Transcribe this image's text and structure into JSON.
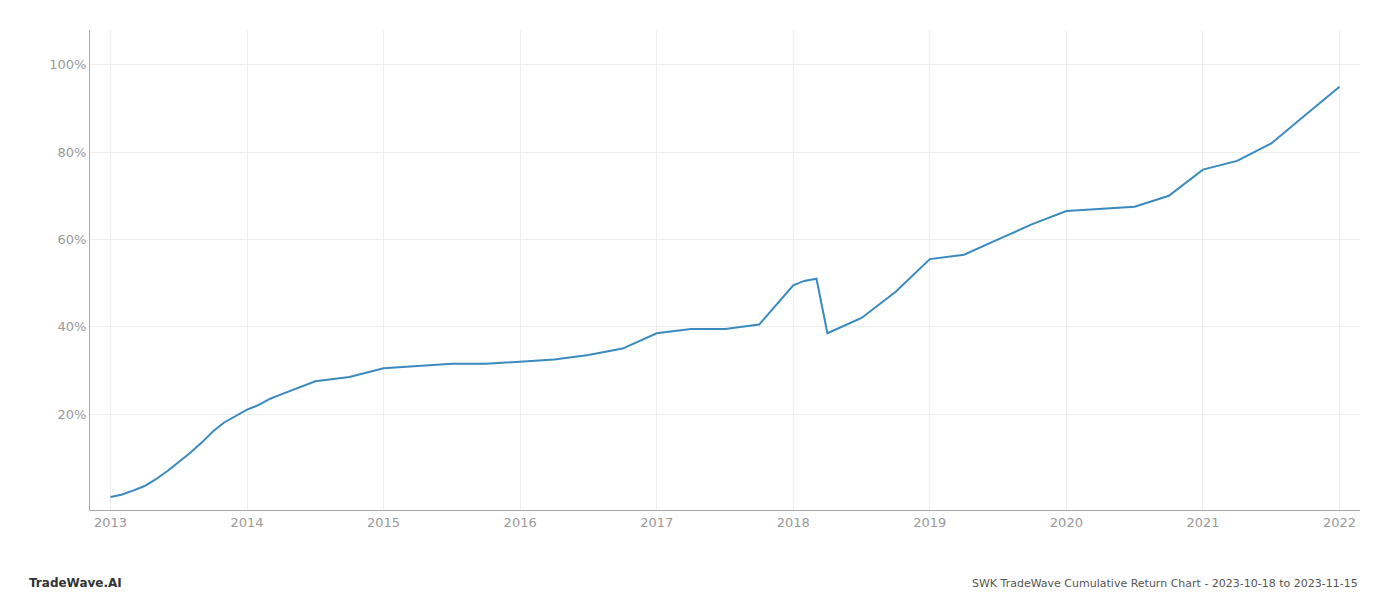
{
  "chart_data": {
    "type": "line",
    "title": "SWK TradeWave Cumulative Return Chart - 2023-10-18 to 2023-11-15",
    "annotations": [
      "TradeWave.AI"
    ],
    "x": [
      2013.0,
      2013.08,
      2013.17,
      2013.25,
      2013.33,
      2013.42,
      2013.5,
      2013.58,
      2013.67,
      2013.75,
      2013.83,
      2013.92,
      2014.0,
      2014.08,
      2014.17,
      2014.25,
      2014.33,
      2014.42,
      2014.5,
      2014.75,
      2015.0,
      2015.25,
      2015.5,
      2015.75,
      2016.0,
      2016.25,
      2016.5,
      2016.75,
      2017.0,
      2017.25,
      2017.5,
      2017.75,
      2018.0,
      2018.08,
      2018.17,
      2018.25,
      2018.5,
      2018.75,
      2019.0,
      2019.25,
      2019.5,
      2019.75,
      2020.0,
      2020.25,
      2020.5,
      2020.75,
      2021.0,
      2021.25,
      2021.5,
      2021.75,
      2022.0
    ],
    "values": [
      1.0,
      1.5,
      2.5,
      3.5,
      5.0,
      7.0,
      9.0,
      11.0,
      13.5,
      16.0,
      18.0,
      19.5,
      21.0,
      22.0,
      23.5,
      24.5,
      25.5,
      26.5,
      27.5,
      28.5,
      30.5,
      31.0,
      31.5,
      31.5,
      32.0,
      32.5,
      33.5,
      35.0,
      38.5,
      39.5,
      39.5,
      40.5,
      49.5,
      50.5,
      51.0,
      38.5,
      42.0,
      48.0,
      55.5,
      56.5,
      60.0,
      63.5,
      66.5,
      67.0,
      67.5,
      70.0,
      76.0,
      78.0,
      82.0,
      88.5,
      95.0
    ],
    "color": "#3a8abf",
    "xlim": [
      2012.85,
      2022.15
    ],
    "xticks": [
      2013,
      2014,
      2015,
      2016,
      2017,
      2018,
      2019,
      2020,
      2021,
      2022
    ],
    "ylim": [
      -2,
      108
    ],
    "yticks": [
      {
        "value": 20,
        "label": "20%"
      },
      {
        "value": 40,
        "label": "40%"
      },
      {
        "value": 60,
        "label": "60%"
      },
      {
        "value": 80,
        "label": "80%"
      },
      {
        "value": 100,
        "label": "100%"
      }
    ],
    "grid": true
  }
}
